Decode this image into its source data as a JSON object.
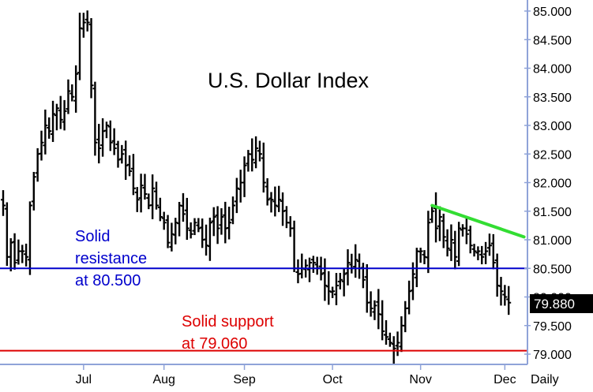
{
  "chart_data": {
    "type": "ohlc",
    "title": "U.S. Dollar Index",
    "period_label": "Daily",
    "ylim": [
      78.9,
      85.1
    ],
    "y_ticks": [
      "85.000",
      "84.500",
      "84.000",
      "83.500",
      "83.000",
      "82.500",
      "82.000",
      "81.500",
      "81.000",
      "80.500",
      "80.000",
      "79.500",
      "79.000"
    ],
    "x_ticks": [
      {
        "label": "Jul",
        "bar_index": 21
      },
      {
        "label": "Aug",
        "bar_index": 42
      },
      {
        "label": "Sep",
        "bar_index": 63
      },
      {
        "label": "Oct",
        "bar_index": 86
      },
      {
        "label": "Nov",
        "bar_index": 109
      },
      {
        "label": "Dec",
        "bar_index": 131
      }
    ],
    "last_price": "79.880",
    "closes": [
      81.6,
      80.7,
      80.95,
      80.6,
      80.8,
      80.8,
      80.7,
      81.6,
      82.1,
      82.5,
      82.7,
      83.0,
      82.9,
      83.2,
      83.3,
      83.1,
      83.25,
      83.6,
      83.5,
      83.9,
      84.7,
      84.8,
      84.8,
      83.7,
      82.7,
      82.6,
      82.9,
      83.0,
      82.7,
      82.6,
      82.4,
      82.5,
      82.3,
      82.2,
      81.9,
      81.7,
      81.95,
      81.8,
      81.6,
      81.9,
      81.6,
      81.4,
      81.3,
      80.95,
      81.1,
      81.3,
      81.6,
      81.45,
      81.2,
      81.1,
      81.3,
      81.2,
      81.0,
      80.9,
      81.3,
      81.4,
      81.2,
      81.4,
      81.2,
      81.3,
      81.6,
      81.9,
      82.0,
      82.3,
      82.5,
      82.4,
      82.6,
      82.5,
      82.0,
      81.7,
      81.7,
      81.6,
      81.7,
      81.5,
      81.3,
      81.2,
      80.5,
      80.4,
      80.5,
      80.55,
      80.6,
      80.6,
      80.5,
      80.4,
      80.2,
      80.1,
      80.1,
      80.2,
      80.3,
      80.4,
      80.6,
      80.5,
      80.65,
      80.5,
      80.3,
      79.9,
      79.8,
      79.85,
      79.7,
      79.4,
      79.3,
      79.2,
      79.1,
      79.2,
      79.5,
      79.8,
      80.1,
      80.4,
      80.8,
      80.8,
      80.7,
      81.3,
      81.5,
      81.2,
      81.4,
      81.05,
      80.85,
      81.0,
      80.7,
      81.2,
      81.2,
      81.1,
      80.9,
      80.8,
      80.8,
      80.7,
      80.8,
      80.9,
      80.6,
      80.2,
      80.1,
      80.0,
      79.9
    ]
  },
  "lines": {
    "resistance": {
      "value": 80.5,
      "color": "#0000cc"
    },
    "support": {
      "value": 79.06,
      "color": "#dd0000"
    },
    "trendline": {
      "from": {
        "bar_index": 112,
        "value": 81.6
      },
      "to": {
        "bar_index": 136,
        "value": 81.05
      },
      "color": "#33dd33"
    }
  },
  "annotations": {
    "resistance": [
      "Solid",
      "resistance",
      "at 80.500"
    ],
    "support": [
      "Solid support",
      "at 79.060"
    ]
  },
  "colors": {
    "bars": "#000000",
    "axis": "#8fa3d8",
    "last_box": "#000000"
  }
}
